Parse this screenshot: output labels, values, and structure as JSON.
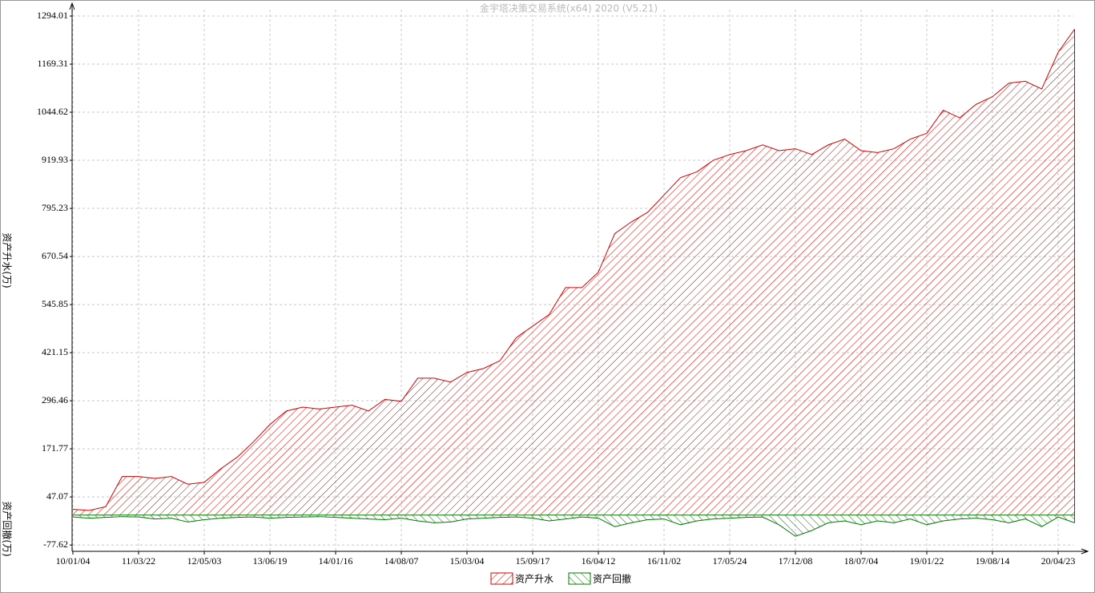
{
  "chart_data": {
    "type": "area",
    "title": "金宇塔决策交易系统(x64) 2020 (V5.21)",
    "y_axis_labels": [
      "资产升水(万)",
      "资产回撤(万)"
    ],
    "categories": [
      "10/01/04",
      null,
      null,
      null,
      "11/03/22",
      null,
      null,
      null,
      "12/05/03",
      null,
      null,
      null,
      "13/06/19",
      null,
      null,
      null,
      "14/01/16",
      null,
      null,
      null,
      "14/08/07",
      null,
      null,
      null,
      "15/03/04",
      null,
      null,
      null,
      "15/09/17",
      null,
      null,
      null,
      "16/04/12",
      null,
      null,
      null,
      "16/11/02",
      null,
      null,
      null,
      "17/05/24",
      null,
      null,
      null,
      "17/12/08",
      null,
      null,
      null,
      "18/07/04",
      null,
      null,
      null,
      "19/01/22",
      null,
      null,
      null,
      "19/08/14",
      null,
      null,
      null,
      "20/04/23",
      null
    ],
    "series": [
      {
        "name": "资产升水",
        "color": "#d40000",
        "values": [
          15,
          12,
          22,
          100,
          100,
          95,
          100,
          80,
          85,
          120,
          150,
          190,
          235,
          270,
          280,
          275,
          280,
          285,
          270,
          300,
          295,
          355,
          355,
          345,
          370,
          380,
          400,
          460,
          490,
          520,
          590,
          590,
          630,
          730,
          760,
          785,
          830,
          875,
          890,
          920,
          935,
          945,
          960,
          945,
          950,
          935,
          960,
          975,
          945,
          940,
          950,
          975,
          990,
          1050,
          1030,
          1065,
          1085,
          1120,
          1125,
          1105,
          1200,
          1260
        ]
      },
      {
        "name": "资产回撤",
        "color": "#007800",
        "values": [
          -5,
          -8,
          -6,
          -4,
          -5,
          -10,
          -8,
          -18,
          -12,
          -8,
          -6,
          -5,
          -8,
          -6,
          -5,
          -4,
          -6,
          -8,
          -10,
          -12,
          -8,
          -15,
          -20,
          -18,
          -10,
          -8,
          -6,
          -5,
          -8,
          -15,
          -10,
          -5,
          -8,
          -30,
          -20,
          -12,
          -10,
          -25,
          -15,
          -10,
          -8,
          -6,
          -5,
          -25,
          -55,
          -40,
          -20,
          -15,
          -25,
          -15,
          -20,
          -10,
          -25,
          -15,
          -10,
          -8,
          -12,
          -20,
          -10,
          -30,
          -5,
          -20
        ]
      }
    ],
    "ylim": [
      -94,
      1319
    ],
    "yticks": [
      -77.62,
      47.07,
      171.77,
      296.46,
      421.15,
      545.85,
      670.54,
      795.23,
      919.93,
      1044.62,
      1169.31,
      1294.01
    ],
    "grid": true
  }
}
